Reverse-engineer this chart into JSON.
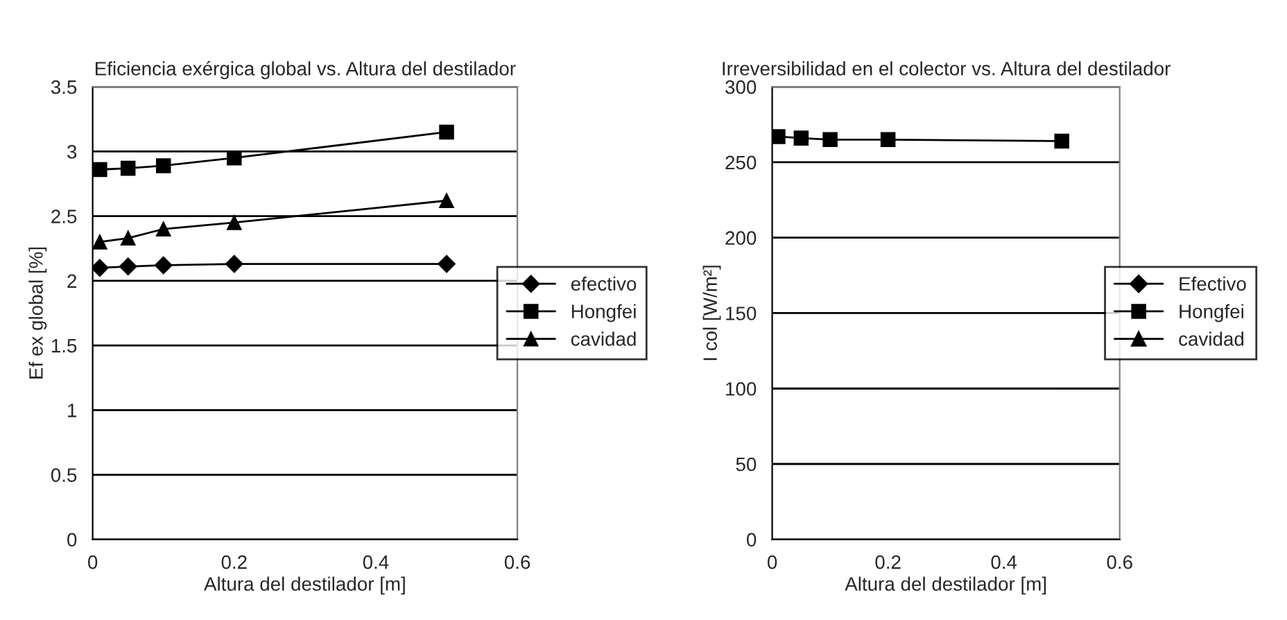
{
  "chart_data": [
    {
      "type": "line",
      "title": "Eficiencia exérgica global vs. Altura del destilador",
      "xlabel": "Altura del destilador [m]",
      "ylabel": "Ef ex global [%]",
      "x": [
        0.01,
        0.05,
        0.1,
        0.2,
        0.5
      ],
      "series": [
        {
          "name": "efectivo",
          "color": "#000000",
          "marker": "diamond",
          "values": [
            2.1,
            2.11,
            2.12,
            2.13,
            2.13
          ]
        },
        {
          "name": "Hongfei",
          "color": "#000000",
          "marker": "square",
          "values": [
            2.86,
            2.87,
            2.89,
            2.95,
            3.15
          ]
        },
        {
          "name": "cavidad",
          "color": "#000000",
          "marker": "triangle",
          "values": [
            2.3,
            2.33,
            2.4,
            2.45,
            2.62
          ]
        }
      ],
      "xlim": [
        0,
        0.6
      ],
      "xticks": [
        0,
        0.2,
        0.4,
        0.6
      ],
      "ylim": [
        0,
        3.5
      ],
      "yticks": [
        0,
        0.5,
        1,
        1.5,
        2,
        2.5,
        3,
        3.5
      ],
      "grid": "y",
      "legend": "right"
    },
    {
      "type": "line",
      "title": "Irreversibilidad en el colector vs. Altura del destilador",
      "xlabel": "Altura del destilador [m]",
      "ylabel": "I col [W/m²]",
      "x": [
        0.01,
        0.05,
        0.1,
        0.2,
        0.5
      ],
      "series": [
        {
          "name": "Efectivo",
          "color": "#000000",
          "marker": "diamond",
          "values": [
            null,
            null,
            null,
            null,
            null
          ]
        },
        {
          "name": "Hongfei",
          "color": "#000000",
          "marker": "square",
          "values": [
            267,
            266,
            265,
            265,
            264
          ]
        },
        {
          "name": "cavidad",
          "color": "#000000",
          "marker": "triangle",
          "values": [
            null,
            null,
            null,
            null,
            null
          ]
        }
      ],
      "xlim": [
        0,
        0.6
      ],
      "xticks": [
        0,
        0.2,
        0.4,
        0.6
      ],
      "ylim": [
        0,
        300
      ],
      "yticks": [
        0,
        50,
        100,
        150,
        200,
        250,
        300
      ],
      "grid": "y",
      "legend": "right"
    }
  ]
}
